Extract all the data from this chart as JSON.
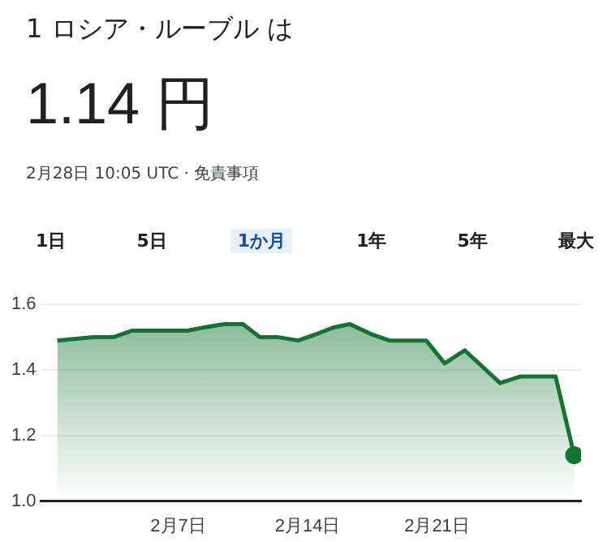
{
  "chart_data": {
    "type": "area",
    "title": "1 ロシア・ルーブル は",
    "subtitle": "1.14 円",
    "annotations": [
      "2月28日 10:05 UTC · 免責事項",
      "1日",
      "5日",
      "1か月",
      "1年",
      "5年",
      "最大"
    ],
    "series": [
      {
        "color": "#137333",
        "x": [
          "--01-31T11:00",
          "--02-02T10:00",
          "--02-03T12:00",
          "--02-04T12:00",
          "--02-05T17:00",
          "--02-06T22:00",
          "--02-07T12:00",
          "--02-08T10:00",
          "--02-09T12:00",
          "--02-10T12:00",
          "--02-11T10:00",
          "--02-12T10:00",
          "--02-13T12:00",
          "--02-14T12:00",
          "--02-15T10:00",
          "--02-16T07:00",
          "--02-17T10:00",
          "--02-18T10:00",
          "--02-20T10:00",
          "--02-21T10:00",
          "--02-22T12:00",
          "--02-24T10:00",
          "--02-25T12:00",
          "--02-27T10:00",
          "--02-28T10:05"
        ],
        "values": [
          1.49,
          1.5,
          1.5,
          1.52,
          1.52,
          1.52,
          1.52,
          1.53,
          1.54,
          1.54,
          1.5,
          1.5,
          1.49,
          1.51,
          1.53,
          1.54,
          1.51,
          1.49,
          1.49,
          1.42,
          1.46,
          1.36,
          1.38,
          1.38,
          1.14
        ]
      },
      {
        "type": "scatter",
        "color": "#137333",
        "marker": "circle",
        "x": [
          "--02-28T10:05"
        ],
        "values": [
          1.14
        ]
      }
    ],
    "xlim": [
      "--01-30T14:00",
      "--02-28T19:00"
    ],
    "xticks": [
      {
        "value": "--02-07",
        "label": "2月7日"
      },
      {
        "value": "--02-14",
        "label": "2月14日"
      },
      {
        "value": "--02-21",
        "label": "2月21日"
      }
    ],
    "ylim": [
      1.0,
      1.6
    ],
    "yticks": [
      {
        "value": 1.0,
        "label": "1.0"
      },
      {
        "value": 1.2,
        "label": "1.2"
      },
      {
        "value": 1.4,
        "label": "1.4"
      },
      {
        "value": 1.6,
        "label": "1.6"
      }
    ],
    "grid": "y",
    "legend": false
  }
}
